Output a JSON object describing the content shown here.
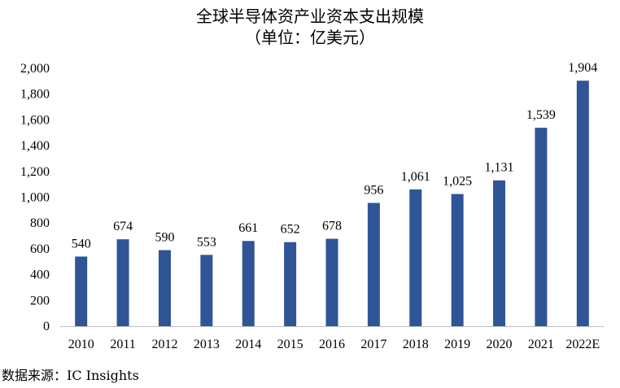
{
  "colors": {
    "bar": "#2f5597",
    "axis": "#bfbfbf",
    "text": "#000000"
  },
  "chart_data": {
    "type": "bar",
    "title": "全球半导体资产业资本支出规模",
    "subtitle": "（单位：亿美元）",
    "xlabel": "",
    "ylabel": "",
    "categories": [
      "2010",
      "2011",
      "2012",
      "2013",
      "2014",
      "2015",
      "2016",
      "2017",
      "2018",
      "2019",
      "2020",
      "2021",
      "2022E"
    ],
    "values": [
      540,
      674,
      590,
      553,
      661,
      652,
      678,
      956,
      1061,
      1025,
      1131,
      1539,
      1904
    ],
    "value_labels": [
      "540",
      "674",
      "590",
      "553",
      "661",
      "652",
      "678",
      "956",
      "1,061",
      "1,025",
      "1,131",
      "1,539",
      "1,904"
    ],
    "ylim": [
      0,
      2000
    ],
    "yticks": [
      0,
      200,
      400,
      600,
      800,
      1000,
      1200,
      1400,
      1600,
      1800,
      2000
    ],
    "ytick_labels": [
      "0",
      "200",
      "400",
      "600",
      "800",
      "1,000",
      "1,200",
      "1,400",
      "1,600",
      "1,800",
      "2,000"
    ],
    "grid": false,
    "legend": "none",
    "source": "数据来源：IC Insights"
  }
}
